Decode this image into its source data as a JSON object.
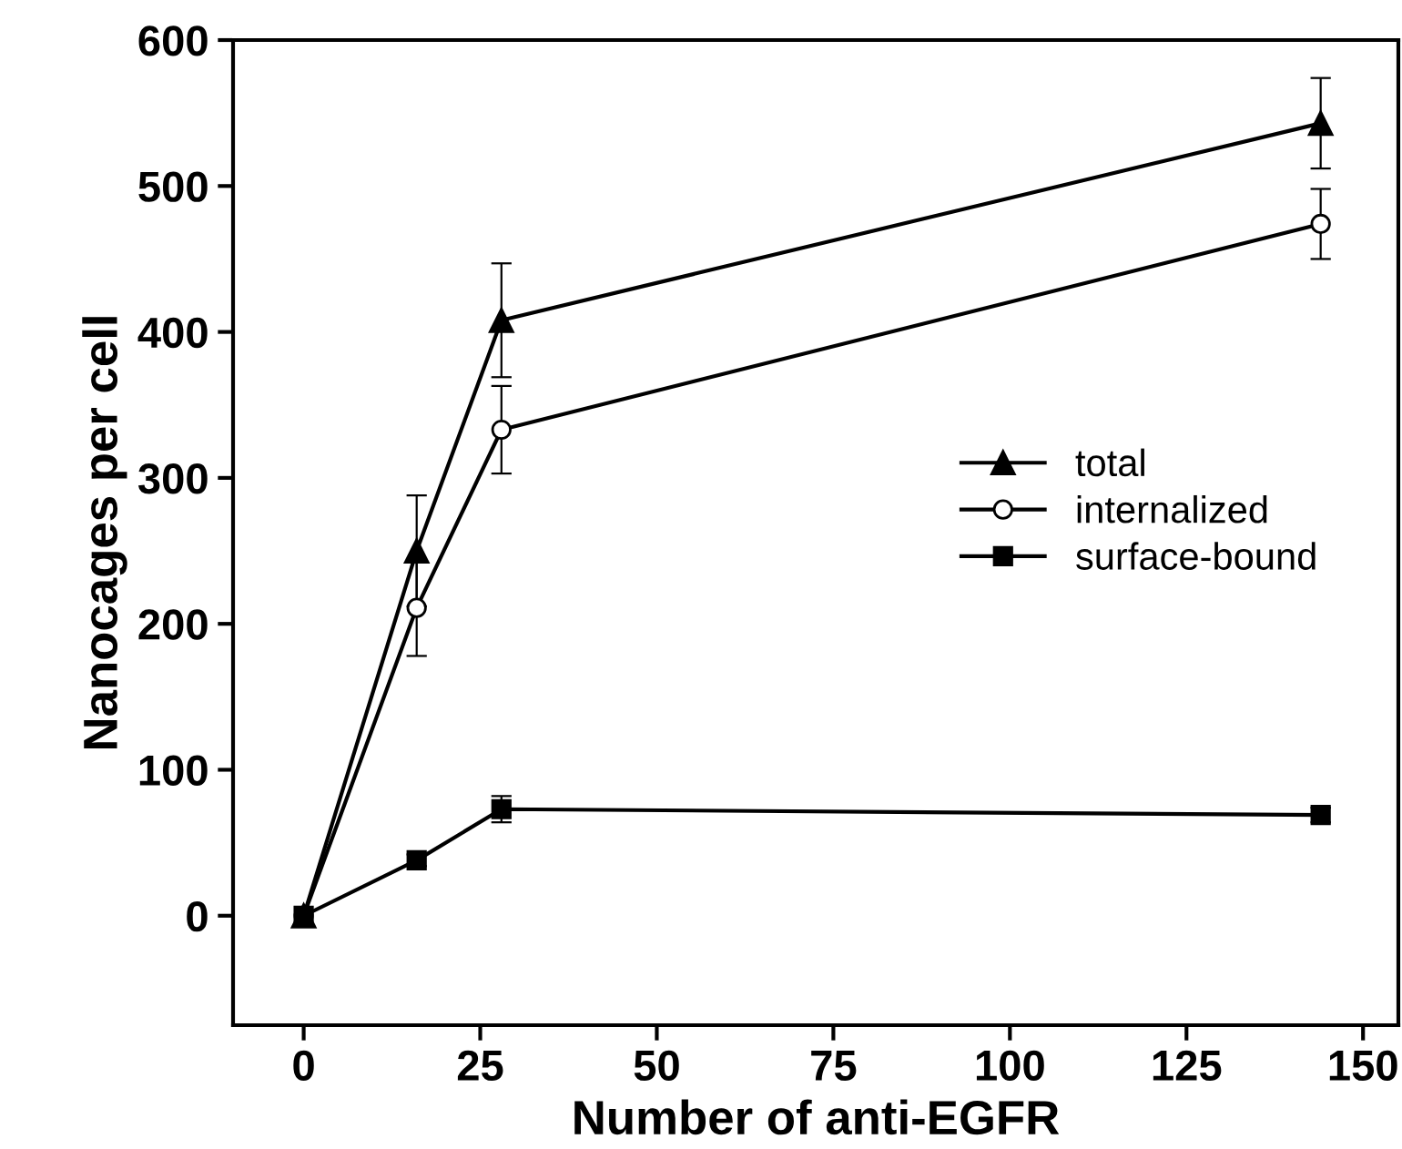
{
  "chart_data": {
    "type": "line",
    "xlabel": "Number of anti-EGFR",
    "ylabel": "Nanocages per cell",
    "x": [
      0,
      16,
      28,
      144
    ],
    "xlim": [
      -10,
      155
    ],
    "xticks": [
      0,
      25,
      50,
      75,
      100,
      125,
      150
    ],
    "ylim": [
      -75,
      600
    ],
    "yticks": [
      0,
      100,
      200,
      300,
      400,
      500,
      600
    ],
    "grid": false,
    "legend": "right",
    "series": [
      {
        "name": "total",
        "color": "#000000",
        "marker": "triangle",
        "values": [
          0,
          250,
          408,
          543
        ],
        "errors": [
          null,
          38,
          39,
          31
        ]
      },
      {
        "name": "internalized",
        "color": "#000000",
        "marker": "circle",
        "values": [
          0,
          211,
          333,
          474
        ],
        "errors": [
          null,
          33,
          30,
          24
        ]
      },
      {
        "name": "surface-bound",
        "color": "#000000",
        "marker": "square",
        "values": [
          0,
          38,
          73,
          69
        ],
        "errors": [
          null,
          4,
          9,
          5
        ]
      }
    ]
  }
}
